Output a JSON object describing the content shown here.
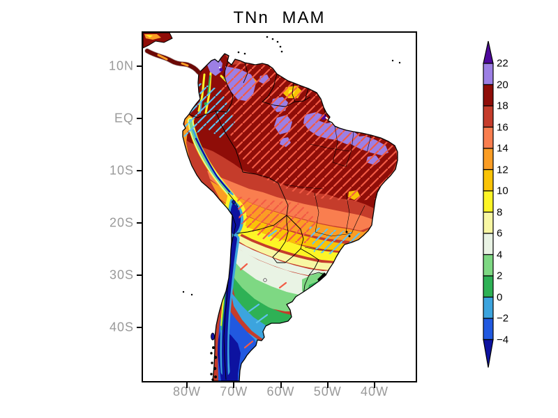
{
  "title": "TNn MAM",
  "y_axis": {
    "ticks": [
      "10N",
      "EQ",
      "10S",
      "20S",
      "30S",
      "40S"
    ]
  },
  "x_axis": {
    "ticks": [
      "80W",
      "70W",
      "60W",
      "50W",
      "40W"
    ]
  },
  "style": {
    "background": "#FFFFFF",
    "title_color": "#000000",
    "axis_label_color": "#999999",
    "frame_color": "#000000",
    "ocean_color": "#FFFFFF"
  },
  "colorbar": {
    "boundary_labels": [
      "22",
      "20",
      "18",
      "16",
      "14",
      "12",
      "10",
      "8",
      "6",
      "4",
      "2",
      "0",
      "−2",
      "−4"
    ],
    "segment_colors_top_to_bottom": [
      "#9C7FE4",
      "#8F0D08",
      "#C53C2B",
      "#F97E4F",
      "#FB9D24",
      "#FAC306",
      "#FDF526",
      "#F8F7A3",
      "#E9F3E4",
      "#7ED883",
      "#2EB155",
      "#3CA4DE",
      "#2159E0"
    ],
    "arrow_top_color": "#4E079C",
    "arrow_bottom_color": "#0D12A0"
  },
  "map": {
    "hatch_red_color": "#F25B45",
    "hatch_blue_color": "#5FC2F0",
    "border_color": "#000000"
  },
  "chart_data": {
    "type": "heatmap",
    "title": "TNn MAM",
    "variable": "TNn",
    "season": "MAM",
    "region": "South America",
    "lat_ticks": [
      "10N",
      "EQ",
      "10S",
      "20S",
      "30S",
      "40S"
    ],
    "lon_ticks": [
      "80W",
      "70W",
      "60W",
      "50W",
      "40W"
    ],
    "scale_levels": [
      -4,
      -2,
      0,
      2,
      4,
      6,
      8,
      10,
      12,
      14,
      16,
      18,
      20,
      22
    ],
    "scale_colors_low_to_high": [
      "#0D12A0",
      "#2159E0",
      "#3CA4DE",
      "#2EB155",
      "#7ED883",
      "#E9F3E4",
      "#F8F7A3",
      "#FDF526",
      "#FAC306",
      "#FB9D24",
      "#F97E4F",
      "#C53C2B",
      "#8F0D08",
      "#9C7FE4",
      "#4E079C"
    ],
    "legend_position": "right vertical colorbar with out-of-range arrows",
    "grid": "off",
    "regions_read_from_map": [
      {
        "area": "Amazon basin and northern South America",
        "value_range": "18-20 dominant"
      },
      {
        "area": "Lower Amazon, NE Brazil interior, N Colombia, Venezuela patches",
        "value_range": "20-22 with small spots above 22"
      },
      {
        "area": "Central Brazil gradient southward",
        "value_range": "16 down to 10"
      },
      {
        "area": "Paraguay and Sao Paulo region",
        "value_range": "6-10"
      },
      {
        "area": "Uruguay and Pampas",
        "value_range": "0-6"
      },
      {
        "area": "Andes from Ecuador to Chile and Altiplano",
        "value_range": "below -4 to 4 narrow bands"
      },
      {
        "area": "Patagonia interior",
        "value_range": "below -4"
      },
      {
        "area": "eastern Patagonia coast",
        "value_range": "-4 to 0"
      },
      {
        "area": "hatching",
        "value_range": "red and light-blue diagonal hatch overlays in tropics and subtropics"
      }
    ]
  }
}
